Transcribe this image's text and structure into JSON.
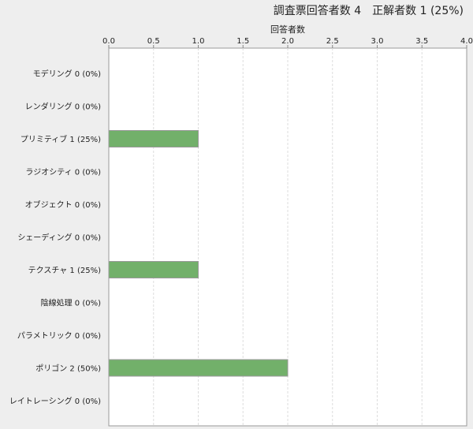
{
  "chart_data": {
    "type": "bar",
    "orientation": "horizontal",
    "title": "調査票回答者数 4　正解者数 1 (25%)",
    "xlabel": "回答者数",
    "ylabel": "",
    "xlim": [
      0,
      4
    ],
    "x_ticks": [
      "0.0",
      "0.5",
      "1.0",
      "1.5",
      "2.0",
      "2.5",
      "3.0",
      "3.5",
      "4.0"
    ],
    "x_axis_position": "top",
    "grid": true,
    "categories": [
      "モデリング 0 (0%)",
      "レンダリング 0 (0%)",
      "プリミティブ 1 (25%)",
      "ラジオシティ 0 (0%)",
      "オブジェクト 0 (0%)",
      "シェーディング 0 (0%)",
      "テクスチャ 1 (25%)",
      "陰線処理 0 (0%)",
      "パラメトリック 0 (0%)",
      "ポリゴン 2 (50%)",
      "レイトレーシング 0 (0%)"
    ],
    "values": [
      0,
      0,
      1,
      0,
      0,
      0,
      1,
      0,
      0,
      2,
      0
    ],
    "bar_color": "#72b06a"
  }
}
